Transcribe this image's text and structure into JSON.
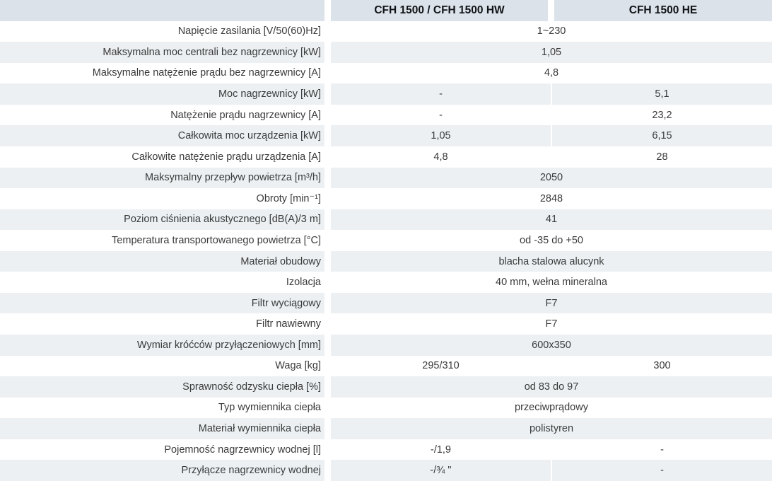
{
  "table": {
    "columns": [
      "",
      "CFH 1500 / CFH 1500 HW",
      "CFH 1500 HE"
    ],
    "rows": [
      {
        "label": "Napięcie zasilania [V/50(60)Hz]",
        "values": [
          "1~230"
        ]
      },
      {
        "label": "Maksymalna moc centrali bez nagrzewnicy [kW]",
        "values": [
          "1,05"
        ]
      },
      {
        "label": "Maksymalne natężenie prądu bez nagrzewnicy [A]",
        "values": [
          "4,8"
        ]
      },
      {
        "label": "Moc nagrzewnicy [kW]",
        "values": [
          "-",
          "5,1"
        ]
      },
      {
        "label": "Natężenie prądu nagrzewnicy [A]",
        "values": [
          "-",
          "23,2"
        ]
      },
      {
        "label": "Całkowita moc urządzenia [kW]",
        "values": [
          "1,05",
          "6,15"
        ]
      },
      {
        "label": "Całkowite natężenie prądu urządzenia [A]",
        "values": [
          "4,8",
          "28"
        ]
      },
      {
        "label": "Maksymalny przepływ powietrza [m³/h]",
        "values": [
          "2050"
        ]
      },
      {
        "label": "Obroty [min⁻¹]",
        "values": [
          "2848"
        ]
      },
      {
        "label": "Poziom ciśnienia akustycznego [dB(A)/3 m]",
        "values": [
          "41"
        ]
      },
      {
        "label": "Temperatura transportowanego powietrza [°C]",
        "values": [
          "od -35 do +50"
        ]
      },
      {
        "label": "Materiał obudowy",
        "values": [
          "blacha stalowa alucynk"
        ]
      },
      {
        "label": "Izolacja",
        "values": [
          "40 mm, wełna mineralna"
        ]
      },
      {
        "label": "Filtr wyciągowy",
        "values": [
          "F7"
        ]
      },
      {
        "label": "Filtr nawiewny",
        "values": [
          "F7"
        ]
      },
      {
        "label": "Wymiar króćców przyłączeniowych [mm]",
        "values": [
          "600x350"
        ]
      },
      {
        "label": "Waga [kg]",
        "values": [
          "295/310",
          "300"
        ]
      },
      {
        "label": "Sprawność odzysku ciepła [%]",
        "values": [
          "od 83 do 97"
        ]
      },
      {
        "label": "Typ wymiennika ciepła",
        "values": [
          "przeciwprądowy"
        ]
      },
      {
        "label": "Materiał wymiennika ciepła",
        "values": [
          "polistyren"
        ]
      },
      {
        "label": "Pojemność nagrzewnicy wodnej [l]",
        "values": [
          "-/1,9",
          "-"
        ]
      },
      {
        "label": "Przyłącze nagrzewnicy wodnej",
        "values": [
          "-/¾ \"",
          "-"
        ]
      }
    ]
  },
  "colors": {
    "header_background": "#dbe2e9",
    "alt_row_background": "#ecf0f3",
    "text": "#3a3a3a",
    "header_text": "#111417"
  }
}
